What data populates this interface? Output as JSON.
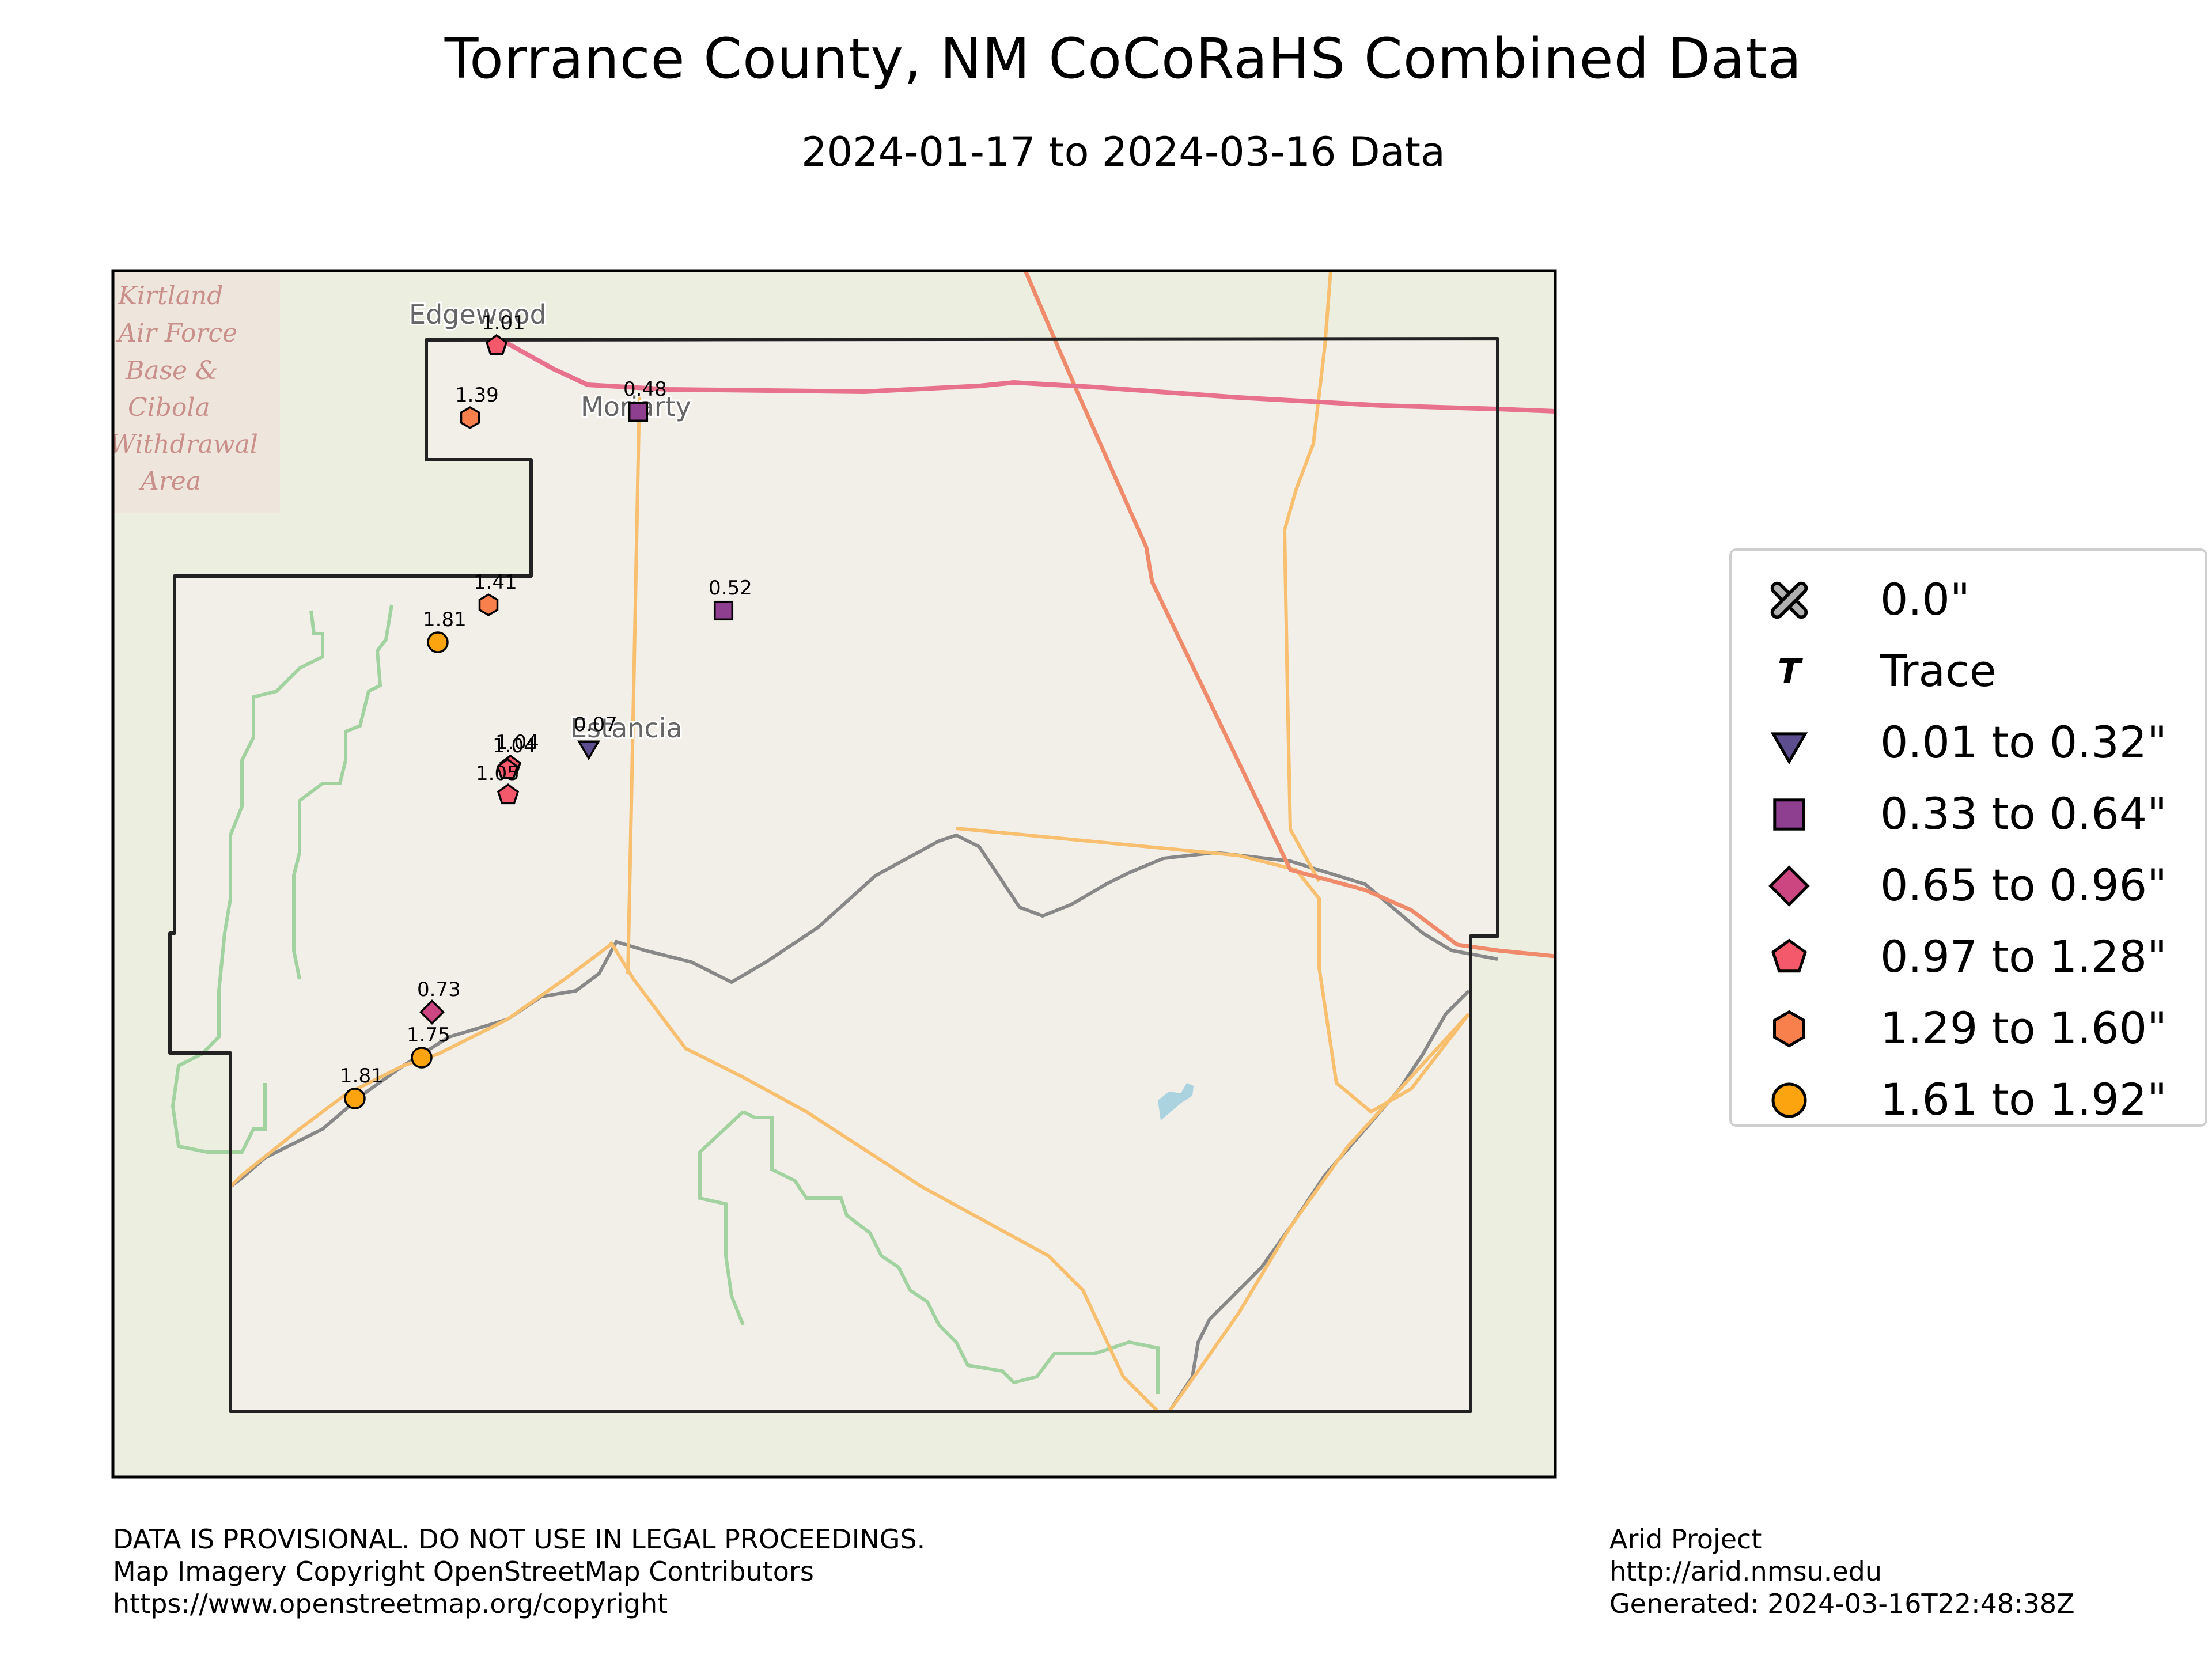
{
  "title": "Torrance County, NM CoCoRaHS Combined Data",
  "subtitle": "2024-01-17 to 2024-03-16 Data",
  "map": {
    "basemap": "OpenStreetMap",
    "place_labels": [
      "Edgewood",
      "Moriarty",
      "Estancia"
    ],
    "area_label_lines": [
      "Kirtland",
      "Air Force",
      "Base &",
      "Cibola",
      "Withdrawal",
      "Area"
    ],
    "colors": {
      "background": "#eceee0",
      "county_fill": "#f2efe9",
      "county_border": "#222222",
      "interstate": "#e8718d",
      "highway": "#f7bf6e",
      "us_route": "#ef8a6b",
      "railroad": "#888888",
      "forest_boundary": "#8fcb8f",
      "water": "#aad3df"
    }
  },
  "stations": [
    {
      "value": "1.01",
      "category": "0.97 to 1.28\""
    },
    {
      "value": "1.39",
      "category": "1.29 to 1.60\""
    },
    {
      "value": "0.48",
      "category": "0.33 to 0.64\""
    },
    {
      "value": "1.41",
      "category": "1.29 to 1.60\""
    },
    {
      "value": "0.52",
      "category": "0.33 to 0.64\""
    },
    {
      "value": "1.81",
      "category": "1.61 to 1.92\""
    },
    {
      "value": "0.07",
      "category": "0.01 to 0.32\""
    },
    {
      "value": "1.04",
      "category": "0.97 to 1.28\""
    },
    {
      "value": "1.04",
      "category": "0.97 to 1.28\""
    },
    {
      "value": "1.05",
      "category": "0.97 to 1.28\""
    },
    {
      "value": "0.73",
      "category": "0.65 to 0.96\""
    },
    {
      "value": "1.75",
      "category": "1.61 to 1.92\""
    },
    {
      "value": "1.81",
      "category": "1.61 to 1.92\""
    }
  ],
  "legend": [
    {
      "label": "0.0\"",
      "symbol": "x",
      "color": "#b0b0b0"
    },
    {
      "label": "Trace",
      "symbol": "T",
      "color": "#000000"
    },
    {
      "label": "0.01 to 0.32\"",
      "symbol": "triangle-down",
      "color": "#5c4e8e"
    },
    {
      "label": "0.33 to 0.64\"",
      "symbol": "square",
      "color": "#8e3f8f"
    },
    {
      "label": "0.65 to 0.96\"",
      "symbol": "diamond",
      "color": "#cc4781"
    },
    {
      "label": "0.97 to 1.28\"",
      "symbol": "pentagon",
      "color": "#f4596b"
    },
    {
      "label": "1.29 to 1.60\"",
      "symbol": "hexagon",
      "color": "#f8804c"
    },
    {
      "label": "1.61 to 1.92\"",
      "symbol": "circle",
      "color": "#fca40f"
    }
  ],
  "footer": {
    "left": [
      "DATA IS PROVISIONAL. DO NOT USE IN LEGAL PROCEEDINGS.",
      "Map Imagery Copyright OpenStreetMap Contributors",
      "https://www.openstreetmap.org/copyright"
    ],
    "right": [
      "Arid Project",
      "http://arid.nmsu.edu",
      "Generated: 2024-03-16T22:48:38Z"
    ]
  }
}
